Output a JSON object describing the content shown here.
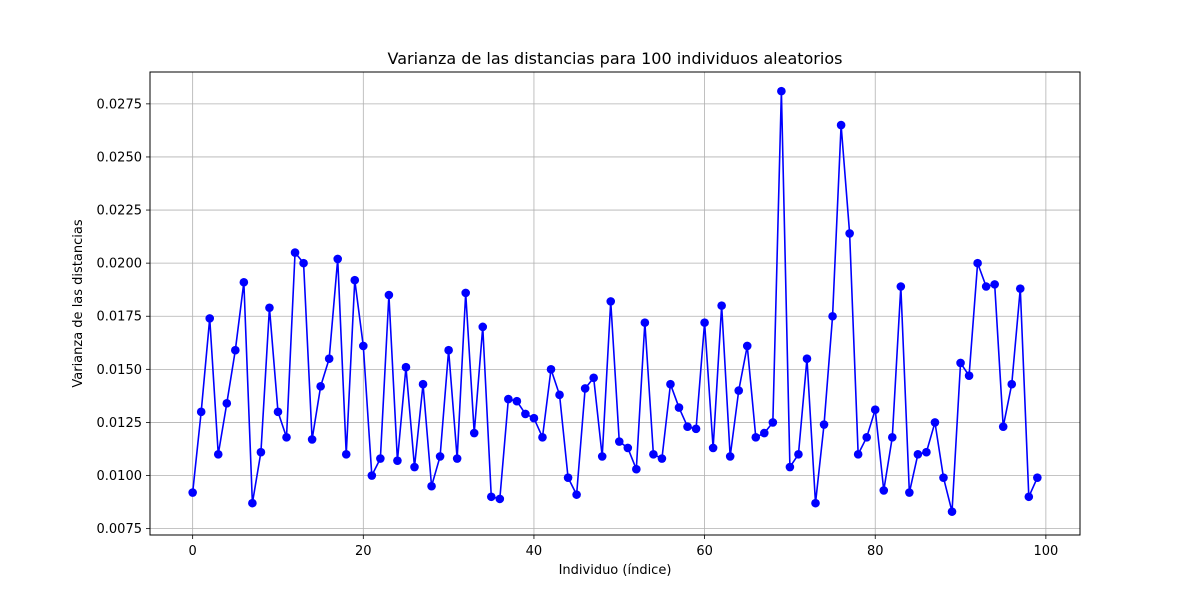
{
  "chart_data": {
    "type": "line",
    "title": "Varianza de las distancias para 100 individuos aleatorios",
    "xlabel": "Individuo (índice)",
    "ylabel": "Varianza de las distancias",
    "xlim": [
      -5,
      104
    ],
    "ylim": [
      0.0072,
      0.029
    ],
    "xticks": [
      0,
      20,
      40,
      60,
      80,
      100
    ],
    "xtick_labels": [
      "0",
      "20",
      "40",
      "60",
      "80",
      "100"
    ],
    "yticks": [
      0.0075,
      0.01,
      0.0125,
      0.015,
      0.0175,
      0.02,
      0.0225,
      0.025,
      0.0275
    ],
    "ytick_labels": [
      "0.0075",
      "0.0100",
      "0.0125",
      "0.0150",
      "0.0175",
      "0.0200",
      "0.0225",
      "0.0250",
      "0.0275"
    ],
    "grid": true,
    "color": "#0000ff",
    "marker": "circle",
    "series": [
      {
        "x": [
          0,
          1,
          2,
          3,
          4,
          5,
          6,
          7,
          8,
          9,
          10,
          11,
          12,
          13,
          14,
          15,
          16,
          17,
          18,
          19,
          20,
          21,
          22,
          23,
          24,
          25,
          26,
          27,
          28,
          29,
          30,
          31,
          32,
          33,
          34,
          35,
          36,
          37,
          38,
          39,
          40,
          41,
          42,
          43,
          44,
          45,
          46,
          47,
          48,
          49,
          50,
          51,
          52,
          53,
          54,
          55,
          56,
          57,
          58,
          59,
          60,
          61,
          62,
          63,
          64,
          65,
          66,
          67,
          68,
          69,
          70,
          71,
          72,
          73,
          74,
          75,
          76,
          77,
          78,
          79,
          80,
          81,
          82,
          83,
          84,
          85,
          86,
          87,
          88,
          89,
          90,
          91,
          92,
          93,
          94,
          95,
          96,
          97,
          98,
          99
        ],
        "values": [
          0.0092,
          0.013,
          0.0174,
          0.011,
          0.0134,
          0.0159,
          0.0191,
          0.0087,
          0.0111,
          0.0179,
          0.013,
          0.0118,
          0.0205,
          0.02,
          0.0117,
          0.0142,
          0.0155,
          0.0202,
          0.011,
          0.0192,
          0.0161,
          0.01,
          0.0108,
          0.0185,
          0.0107,
          0.0151,
          0.0104,
          0.0143,
          0.0095,
          0.0109,
          0.0159,
          0.0108,
          0.0186,
          0.012,
          0.017,
          0.009,
          0.0089,
          0.0136,
          0.0135,
          0.0129,
          0.0127,
          0.0118,
          0.015,
          0.0138,
          0.0099,
          0.0091,
          0.0141,
          0.0146,
          0.0109,
          0.0182,
          0.0116,
          0.0113,
          0.0103,
          0.0172,
          0.011,
          0.0108,
          0.0143,
          0.0132,
          0.0123,
          0.0122,
          0.0172,
          0.0113,
          0.018,
          0.0109,
          0.014,
          0.0161,
          0.0118,
          0.012,
          0.0125,
          0.0281,
          0.0104,
          0.011,
          0.0155,
          0.0087,
          0.0124,
          0.0175,
          0.0265,
          0.0214,
          0.011,
          0.0118,
          0.0131,
          0.0093,
          0.0118,
          0.0189,
          0.0092,
          0.011,
          0.0111,
          0.0125,
          0.0099,
          0.0083,
          0.0153,
          0.0147,
          0.02,
          0.0189,
          0.019,
          0.0123,
          0.0143,
          0.0188,
          0.009,
          0.0099
        ]
      }
    ]
  }
}
